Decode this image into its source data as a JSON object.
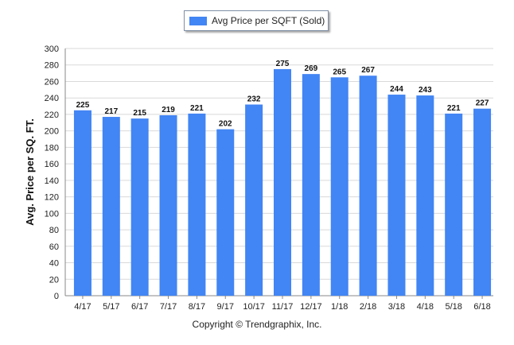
{
  "colors": {
    "bar": "#4285f4",
    "grid": "#d9d9d9",
    "axis": "#888888"
  },
  "legend": {
    "label": "Avg Price per SQFT (Sold)"
  },
  "credit": "Copyright © Trendgraphix, Inc.",
  "chart_data": {
    "type": "bar",
    "categories": [
      "4/17",
      "5/17",
      "6/17",
      "7/17",
      "8/17",
      "9/17",
      "10/17",
      "11/17",
      "12/17",
      "1/18",
      "2/18",
      "3/18",
      "4/18",
      "5/18",
      "6/18"
    ],
    "series": [
      {
        "name": "Avg Price per SQFT (Sold)",
        "values": [
          225,
          217,
          215,
          219,
          221,
          202,
          232,
          275,
          269,
          265,
          267,
          244,
          243,
          221,
          227
        ]
      }
    ],
    "ylabel": "Avg. Price per SQ. FT.",
    "ylim": [
      0,
      300
    ],
    "yticks": [
      0,
      20,
      40,
      60,
      80,
      100,
      120,
      140,
      160,
      180,
      200,
      220,
      240,
      260,
      280,
      300
    ],
    "grid": true,
    "legend_position": "top-center"
  }
}
